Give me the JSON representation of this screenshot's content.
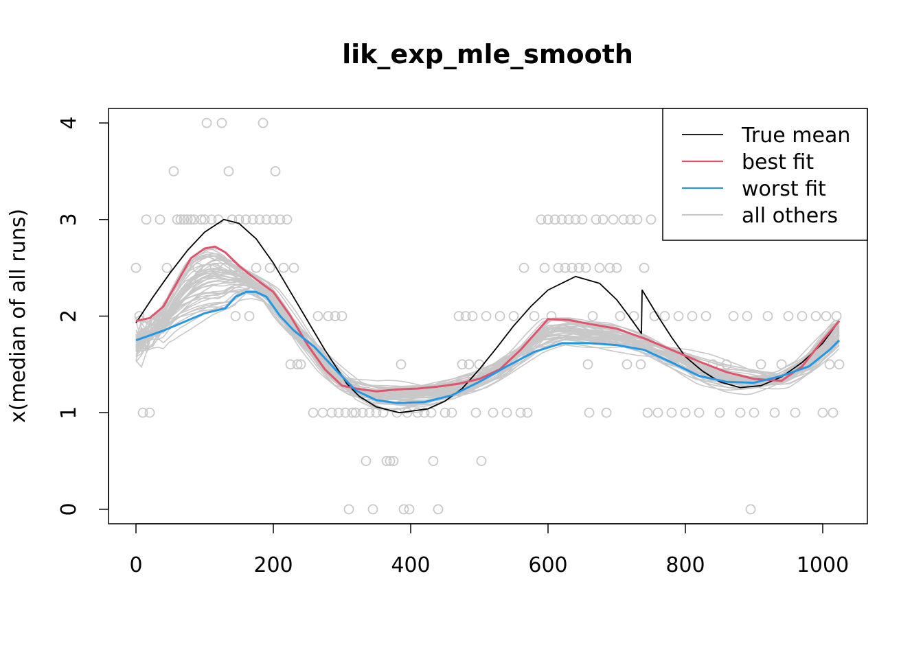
{
  "chart_data": {
    "type": "line",
    "title": "lik_exp_mle_smooth",
    "xlabel": "",
    "ylabel": "x(median of all runs)",
    "xlim": [
      -40,
      1065
    ],
    "ylim": [
      -0.15,
      4.15
    ],
    "x_ticks": [
      0,
      200,
      400,
      600,
      800,
      1000
    ],
    "y_ticks": [
      0,
      1,
      2,
      3,
      4
    ],
    "x_tick_labels": [
      "0",
      "200",
      "400",
      "600",
      "800",
      "1000"
    ],
    "y_tick_labels": [
      "0",
      "1",
      "2",
      "3",
      "4"
    ],
    "legend": {
      "position": "top-right",
      "entries": [
        "True mean",
        "best fit",
        "worst fit",
        "all others"
      ]
    },
    "colors": {
      "true_mean": "#000000",
      "best_fit": "#DF536B",
      "worst_fit": "#2297E6",
      "others": "#C8C8C8"
    },
    "series": [
      {
        "key": "true_mean",
        "x": [
          0,
          25,
          50,
          75,
          100,
          128,
          150,
          175,
          200,
          225,
          250,
          275,
          300,
          307,
          325,
          350,
          384,
          425,
          450,
          475,
          500,
          525,
          550,
          575,
          600,
          640,
          675,
          700,
          720,
          736,
          737,
          760,
          780,
          800,
          825,
          850,
          880,
          910,
          940,
          970,
          1000,
          1024
        ],
        "y": [
          1.93,
          2.2,
          2.45,
          2.68,
          2.87,
          3.0,
          2.96,
          2.8,
          2.55,
          2.25,
          1.95,
          1.65,
          1.38,
          1.3,
          1.17,
          1.06,
          1.0,
          1.04,
          1.12,
          1.25,
          1.45,
          1.67,
          1.9,
          2.1,
          2.27,
          2.41,
          2.34,
          2.17,
          1.98,
          1.82,
          2.27,
          2.0,
          1.78,
          1.58,
          1.43,
          1.32,
          1.26,
          1.28,
          1.37,
          1.52,
          1.72,
          1.95
        ]
      },
      {
        "key": "best_fit",
        "x": [
          0,
          20,
          40,
          60,
          80,
          100,
          115,
          130,
          150,
          175,
          200,
          225,
          250,
          275,
          300,
          320,
          350,
          380,
          410,
          440,
          470,
          500,
          530,
          560,
          600,
          630,
          660,
          700,
          740,
          780,
          820,
          860,
          900,
          940,
          970,
          1000,
          1024
        ],
        "y": [
          1.95,
          1.98,
          2.1,
          2.35,
          2.6,
          2.7,
          2.72,
          2.66,
          2.52,
          2.38,
          2.25,
          2.0,
          1.7,
          1.45,
          1.28,
          1.25,
          1.22,
          1.24,
          1.25,
          1.27,
          1.3,
          1.35,
          1.45,
          1.65,
          1.97,
          1.96,
          1.92,
          1.87,
          1.77,
          1.65,
          1.53,
          1.42,
          1.35,
          1.33,
          1.48,
          1.75,
          1.95
        ]
      },
      {
        "key": "worst_fit",
        "x": [
          0,
          40,
          80,
          100,
          130,
          145,
          160,
          175,
          190,
          210,
          230,
          260,
          290,
          320,
          350,
          380,
          420,
          460,
          500,
          540,
          580,
          620,
          660,
          700,
          740,
          780,
          820,
          860,
          900,
          940,
          980,
          1010,
          1024
        ],
        "y": [
          1.75,
          1.85,
          1.97,
          2.03,
          2.08,
          2.2,
          2.25,
          2.25,
          2.2,
          2.0,
          1.85,
          1.68,
          1.45,
          1.23,
          1.13,
          1.1,
          1.11,
          1.18,
          1.32,
          1.48,
          1.63,
          1.72,
          1.72,
          1.7,
          1.65,
          1.52,
          1.38,
          1.32,
          1.31,
          1.38,
          1.48,
          1.65,
          1.75
        ]
      }
    ],
    "other_runs_count": 48,
    "points": [
      [
        0,
        2.5
      ],
      [
        5,
        2
      ],
      [
        10,
        1
      ],
      [
        15,
        3
      ],
      [
        20,
        1
      ],
      [
        35,
        3
      ],
      [
        45,
        2.5
      ],
      [
        55,
        3.5
      ],
      [
        60,
        3
      ],
      [
        65,
        3
      ],
      [
        70,
        3
      ],
      [
        75,
        3
      ],
      [
        80,
        3
      ],
      [
        85,
        3
      ],
      [
        90,
        2.5
      ],
      [
        95,
        3
      ],
      [
        100,
        3
      ],
      [
        103,
        4
      ],
      [
        110,
        3
      ],
      [
        115,
        2.5
      ],
      [
        120,
        3
      ],
      [
        125,
        4
      ],
      [
        130,
        2.5
      ],
      [
        135,
        3.5
      ],
      [
        140,
        3
      ],
      [
        145,
        2
      ],
      [
        150,
        3
      ],
      [
        160,
        3
      ],
      [
        165,
        2
      ],
      [
        170,
        3
      ],
      [
        175,
        2.5
      ],
      [
        180,
        3
      ],
      [
        185,
        4
      ],
      [
        190,
        3
      ],
      [
        195,
        2.5
      ],
      [
        200,
        3
      ],
      [
        203,
        3.5
      ],
      [
        210,
        3
      ],
      [
        215,
        2.5
      ],
      [
        220,
        3
      ],
      [
        225,
        1.5
      ],
      [
        230,
        2.5
      ],
      [
        235,
        1.5
      ],
      [
        240,
        1.5
      ],
      [
        258,
        1
      ],
      [
        265,
        2
      ],
      [
        272,
        1
      ],
      [
        280,
        2
      ],
      [
        285,
        1
      ],
      [
        290,
        2
      ],
      [
        295,
        1
      ],
      [
        300,
        2
      ],
      [
        305,
        1
      ],
      [
        310,
        0
      ],
      [
        315,
        1
      ],
      [
        320,
        1
      ],
      [
        330,
        1
      ],
      [
        335,
        0.5
      ],
      [
        340,
        1
      ],
      [
        345,
        0
      ],
      [
        350,
        1
      ],
      [
        360,
        1
      ],
      [
        365,
        0.5
      ],
      [
        370,
        0.5
      ],
      [
        375,
        0.5
      ],
      [
        380,
        1
      ],
      [
        386,
        1.5
      ],
      [
        390,
        0
      ],
      [
        395,
        1
      ],
      [
        398,
        0
      ],
      [
        410,
        1
      ],
      [
        420,
        1
      ],
      [
        430,
        1
      ],
      [
        433,
        0.5
      ],
      [
        440,
        0
      ],
      [
        450,
        1
      ],
      [
        460,
        1
      ],
      [
        470,
        2
      ],
      [
        475,
        1.5
      ],
      [
        480,
        2
      ],
      [
        485,
        1.5
      ],
      [
        490,
        2
      ],
      [
        495,
        1
      ],
      [
        500,
        1.5
      ],
      [
        503,
        0.5
      ],
      [
        510,
        2
      ],
      [
        520,
        1
      ],
      [
        530,
        2
      ],
      [
        540,
        1
      ],
      [
        550,
        2
      ],
      [
        560,
        1
      ],
      [
        565,
        2.5
      ],
      [
        570,
        1
      ],
      [
        580,
        2
      ],
      [
        590,
        3
      ],
      [
        595,
        2.5
      ],
      [
        600,
        3
      ],
      [
        605,
        2
      ],
      [
        610,
        3
      ],
      [
        615,
        2.5
      ],
      [
        620,
        3
      ],
      [
        625,
        2.5
      ],
      [
        630,
        3
      ],
      [
        635,
        2.5
      ],
      [
        640,
        3
      ],
      [
        645,
        2.5
      ],
      [
        650,
        3
      ],
      [
        655,
        2.5
      ],
      [
        658,
        1.5
      ],
      [
        660,
        1
      ],
      [
        665,
        2
      ],
      [
        670,
        3
      ],
      [
        675,
        2.5
      ],
      [
        680,
        3
      ],
      [
        685,
        1
      ],
      [
        690,
        2.5
      ],
      [
        695,
        3
      ],
      [
        700,
        2.5
      ],
      [
        705,
        2
      ],
      [
        710,
        3
      ],
      [
        715,
        1.5
      ],
      [
        720,
        3
      ],
      [
        725,
        2
      ],
      [
        730,
        3
      ],
      [
        735,
        1.5
      ],
      [
        740,
        2.5
      ],
      [
        745,
        1
      ],
      [
        750,
        3
      ],
      [
        755,
        2
      ],
      [
        760,
        1
      ],
      [
        770,
        2
      ],
      [
        780,
        1
      ],
      [
        790,
        2
      ],
      [
        800,
        1
      ],
      [
        810,
        2
      ],
      [
        820,
        1
      ],
      [
        830,
        2
      ],
      [
        840,
        1.5
      ],
      [
        850,
        1
      ],
      [
        860,
        1.5
      ],
      [
        870,
        2
      ],
      [
        880,
        1
      ],
      [
        890,
        2
      ],
      [
        895,
        0
      ],
      [
        900,
        1
      ],
      [
        910,
        1.5
      ],
      [
        920,
        2
      ],
      [
        930,
        1
      ],
      [
        940,
        1.5
      ],
      [
        950,
        2
      ],
      [
        960,
        1
      ],
      [
        970,
        2
      ],
      [
        980,
        1.5
      ],
      [
        990,
        2
      ],
      [
        1000,
        1
      ],
      [
        1005,
        2
      ],
      [
        1010,
        1.5
      ],
      [
        1015,
        1
      ],
      [
        1020,
        2
      ],
      [
        1024,
        1.5
      ]
    ]
  }
}
